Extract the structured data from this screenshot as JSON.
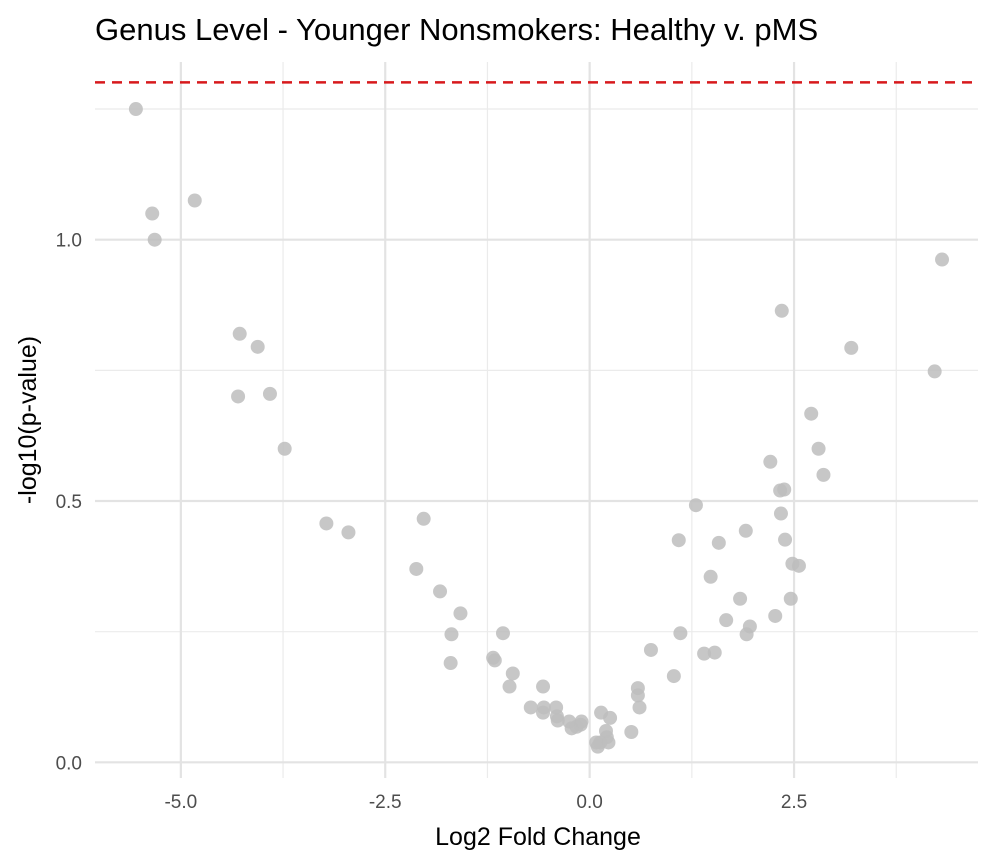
{
  "chart_data": {
    "type": "scatter",
    "title": "Genus Level - Younger Nonsmokers: Healthy v. pMS",
    "xlabel": "Log2 Fold Change",
    "ylabel": "-log10(p-value)",
    "xlim": [
      -6.05,
      4.75
    ],
    "ylim": [
      -0.03,
      1.34
    ],
    "x_ticks": [
      -5.0,
      -2.5,
      0.0,
      2.5
    ],
    "x_tick_labels": [
      "-5.0",
      "-2.5",
      "0.0",
      "2.5"
    ],
    "y_ticks": [
      0.0,
      0.5,
      1.0
    ],
    "y_tick_labels": [
      "0.0",
      "0.5",
      "1.0"
    ],
    "x_minor_ticks": [
      -6.25,
      -3.75,
      -1.25,
      1.25,
      3.75
    ],
    "y_minor_ticks": [
      0.25,
      0.75,
      1.25
    ],
    "grid": true,
    "threshold_line": {
      "y": 1.301,
      "color": "#d7191c",
      "style": "dashed"
    },
    "point_color": "#bdbdbd",
    "points": [
      {
        "x": -5.55,
        "y": 1.25
      },
      {
        "x": -5.35,
        "y": 1.05
      },
      {
        "x": -5.32,
        "y": 1.0
      },
      {
        "x": -4.83,
        "y": 1.075
      },
      {
        "x": -4.28,
        "y": 0.82
      },
      {
        "x": -4.3,
        "y": 0.7
      },
      {
        "x": -4.06,
        "y": 0.795
      },
      {
        "x": -3.91,
        "y": 0.705
      },
      {
        "x": -3.73,
        "y": 0.6
      },
      {
        "x": -3.22,
        "y": 0.457
      },
      {
        "x": -2.95,
        "y": 0.44
      },
      {
        "x": -2.03,
        "y": 0.466
      },
      {
        "x": -2.12,
        "y": 0.37
      },
      {
        "x": -1.83,
        "y": 0.327
      },
      {
        "x": -1.58,
        "y": 0.285
      },
      {
        "x": -1.69,
        "y": 0.245
      },
      {
        "x": -1.7,
        "y": 0.19
      },
      {
        "x": -1.18,
        "y": 0.2
      },
      {
        "x": -1.16,
        "y": 0.195
      },
      {
        "x": -1.06,
        "y": 0.247
      },
      {
        "x": -0.94,
        "y": 0.17
      },
      {
        "x": -0.98,
        "y": 0.145
      },
      {
        "x": -0.72,
        "y": 0.105
      },
      {
        "x": -0.57,
        "y": 0.145
      },
      {
        "x": -0.56,
        "y": 0.105
      },
      {
        "x": -0.57,
        "y": 0.095
      },
      {
        "x": -0.41,
        "y": 0.105
      },
      {
        "x": -0.4,
        "y": 0.088
      },
      {
        "x": -0.39,
        "y": 0.08
      },
      {
        "x": -0.25,
        "y": 0.078
      },
      {
        "x": -0.22,
        "y": 0.065
      },
      {
        "x": -0.16,
        "y": 0.068
      },
      {
        "x": -0.1,
        "y": 0.078
      },
      {
        "x": -0.11,
        "y": 0.072
      },
      {
        "x": 0.08,
        "y": 0.038
      },
      {
        "x": 0.1,
        "y": 0.03
      },
      {
        "x": 0.13,
        "y": 0.038
      },
      {
        "x": 0.14,
        "y": 0.095
      },
      {
        "x": 0.2,
        "y": 0.06
      },
      {
        "x": 0.21,
        "y": 0.048
      },
      {
        "x": 0.23,
        "y": 0.038
      },
      {
        "x": 0.25,
        "y": 0.085
      },
      {
        "x": 0.51,
        "y": 0.058
      },
      {
        "x": 0.59,
        "y": 0.142
      },
      {
        "x": 0.59,
        "y": 0.128
      },
      {
        "x": 0.61,
        "y": 0.105
      },
      {
        "x": 0.75,
        "y": 0.215
      },
      {
        "x": 1.03,
        "y": 0.165
      },
      {
        "x": 1.09,
        "y": 0.425
      },
      {
        "x": 1.11,
        "y": 0.247
      },
      {
        "x": 1.3,
        "y": 0.492
      },
      {
        "x": 1.4,
        "y": 0.208
      },
      {
        "x": 1.48,
        "y": 0.355
      },
      {
        "x": 1.53,
        "y": 0.21
      },
      {
        "x": 1.58,
        "y": 0.42
      },
      {
        "x": 1.67,
        "y": 0.272
      },
      {
        "x": 1.84,
        "y": 0.313
      },
      {
        "x": 1.91,
        "y": 0.443
      },
      {
        "x": 1.92,
        "y": 0.245
      },
      {
        "x": 1.96,
        "y": 0.26
      },
      {
        "x": 2.21,
        "y": 0.575
      },
      {
        "x": 2.27,
        "y": 0.28
      },
      {
        "x": 2.33,
        "y": 0.52
      },
      {
        "x": 2.34,
        "y": 0.476
      },
      {
        "x": 2.35,
        "y": 0.864
      },
      {
        "x": 2.38,
        "y": 0.522
      },
      {
        "x": 2.39,
        "y": 0.426
      },
      {
        "x": 2.46,
        "y": 0.313
      },
      {
        "x": 2.48,
        "y": 0.38
      },
      {
        "x": 2.56,
        "y": 0.376
      },
      {
        "x": 2.71,
        "y": 0.667
      },
      {
        "x": 2.8,
        "y": 0.6
      },
      {
        "x": 2.86,
        "y": 0.55
      },
      {
        "x": 3.2,
        "y": 0.793
      },
      {
        "x": 4.22,
        "y": 0.748
      },
      {
        "x": 4.31,
        "y": 0.962
      }
    ]
  }
}
